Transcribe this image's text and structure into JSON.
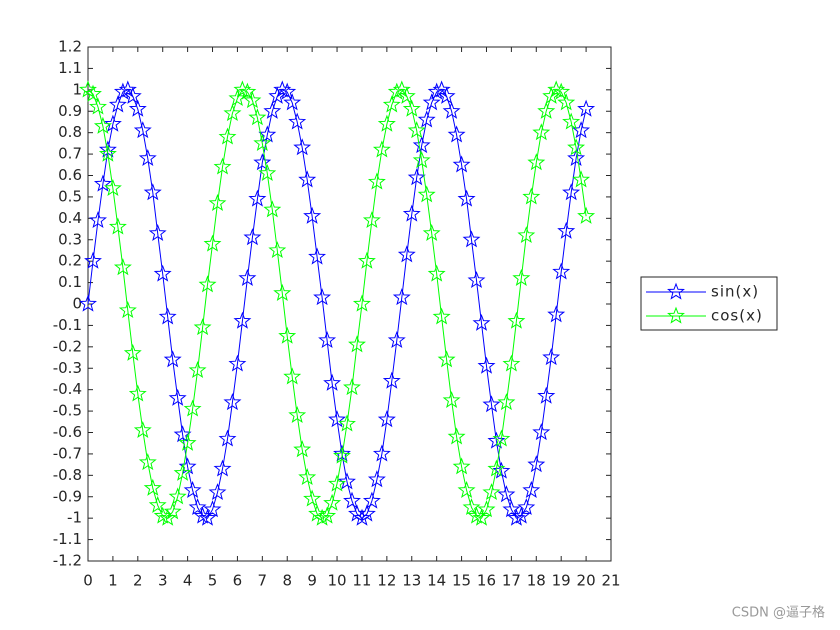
{
  "chart_data": {
    "type": "line",
    "x": [
      0,
      0.2,
      0.4,
      0.6,
      0.8,
      1,
      1.2,
      1.4,
      1.6,
      1.8,
      2,
      2.2,
      2.4,
      2.6,
      2.8,
      3,
      3.2,
      3.4,
      3.6,
      3.8,
      4,
      4.2,
      4.4,
      4.6,
      4.8,
      5,
      5.2,
      5.4,
      5.6,
      5.8,
      6,
      6.2,
      6.4,
      6.6,
      6.8,
      7,
      7.2,
      7.4,
      7.6,
      7.8,
      8,
      8.2,
      8.4,
      8.6,
      8.8,
      9,
      9.2,
      9.4,
      9.6,
      9.8,
      10,
      10.2,
      10.4,
      10.6,
      10.8,
      11,
      11.2,
      11.4,
      11.6,
      11.8,
      12,
      12.2,
      12.4,
      12.6,
      12.8,
      13,
      13.2,
      13.4,
      13.6,
      13.8,
      14,
      14.2,
      14.4,
      14.6,
      14.8,
      15,
      15.2,
      15.4,
      15.6,
      15.8,
      16,
      16.2,
      16.4,
      16.6,
      16.8,
      17,
      17.2,
      17.4,
      17.6,
      17.8,
      18,
      18.2,
      18.4,
      18.6,
      18.8,
      19,
      19.2,
      19.4,
      19.6,
      19.8,
      20
    ],
    "series": [
      {
        "name": "sin(x)",
        "color": "#0000ff",
        "marker": "star",
        "values": [
          0,
          0.2,
          0.39,
          0.56,
          0.72,
          0.84,
          0.93,
          0.99,
          1,
          0.97,
          0.91,
          0.81,
          0.68,
          0.52,
          0.33,
          0.14,
          -0.06,
          -0.26,
          -0.44,
          -0.61,
          -0.76,
          -0.87,
          -0.95,
          -0.99,
          -1,
          -0.96,
          -0.88,
          -0.77,
          -0.63,
          -0.46,
          -0.28,
          -0.08,
          0.12,
          0.31,
          0.49,
          0.66,
          0.79,
          0.9,
          0.97,
          1,
          0.99,
          0.94,
          0.85,
          0.73,
          0.58,
          0.41,
          0.22,
          0.03,
          -0.17,
          -0.37,
          -0.54,
          -0.7,
          -0.83,
          -0.92,
          -0.98,
          -1,
          -0.98,
          -0.92,
          -0.82,
          -0.7,
          -0.54,
          -0.36,
          -0.17,
          0.03,
          0.23,
          0.42,
          0.59,
          0.74,
          0.86,
          0.94,
          0.99,
          1,
          0.97,
          0.9,
          0.79,
          0.65,
          0.49,
          0.3,
          0.11,
          -0.09,
          -0.29,
          -0.47,
          -0.64,
          -0.78,
          -0.89,
          -0.96,
          -1,
          -0.99,
          -0.95,
          -0.87,
          -0.75,
          -0.6,
          -0.43,
          -0.25,
          -0.05,
          0.15,
          0.34,
          0.52,
          0.68,
          0.81,
          0.91
        ]
      },
      {
        "name": "cos(x)",
        "color": "#00ff00",
        "marker": "star",
        "values": [
          1,
          0.98,
          0.92,
          0.83,
          0.7,
          0.54,
          0.36,
          0.17,
          -0.03,
          -0.23,
          -0.42,
          -0.59,
          -0.74,
          -0.86,
          -0.94,
          -0.99,
          -1,
          -0.97,
          -0.9,
          -0.79,
          -0.65,
          -0.49,
          -0.31,
          -0.11,
          0.09,
          0.28,
          0.47,
          0.64,
          0.78,
          0.89,
          0.96,
          1,
          0.99,
          0.95,
          0.87,
          0.75,
          0.61,
          0.44,
          0.25,
          0.05,
          -0.15,
          -0.34,
          -0.52,
          -0.68,
          -0.81,
          -0.91,
          -0.98,
          -1,
          -0.99,
          -0.93,
          -0.84,
          -0.71,
          -0.56,
          -0.39,
          -0.19,
          0,
          0.2,
          0.39,
          0.57,
          0.72,
          0.84,
          0.93,
          0.99,
          1,
          0.97,
          0.91,
          0.81,
          0.67,
          0.51,
          0.33,
          0.14,
          -0.06,
          -0.26,
          -0.45,
          -0.62,
          -0.76,
          -0.87,
          -0.95,
          -0.99,
          -1,
          -0.96,
          -0.88,
          -0.77,
          -0.63,
          -0.46,
          -0.28,
          -0.08,
          0.12,
          0.32,
          0.5,
          0.66,
          0.8,
          0.9,
          0.97,
          1,
          0.99,
          0.94,
          0.85,
          0.73,
          0.58,
          0.41
        ]
      }
    ],
    "xlim": [
      0,
      21
    ],
    "ylim": [
      -1.2,
      1.2
    ],
    "xticks": [
      0,
      1,
      2,
      3,
      4,
      5,
      6,
      7,
      8,
      9,
      10,
      11,
      12,
      13,
      14,
      15,
      16,
      17,
      18,
      19,
      20,
      21
    ],
    "yticks": [
      -1.2,
      -1.1,
      -1,
      -0.9,
      -0.8,
      -0.7,
      -0.6,
      -0.5,
      -0.4,
      -0.3,
      -0.2,
      -0.1,
      0,
      0.1,
      0.2,
      0.3,
      0.4,
      0.5,
      0.6,
      0.7,
      0.8,
      0.9,
      1,
      1.1,
      1.2
    ],
    "legend": "right",
    "watermark": "CSDN @逼子格"
  }
}
